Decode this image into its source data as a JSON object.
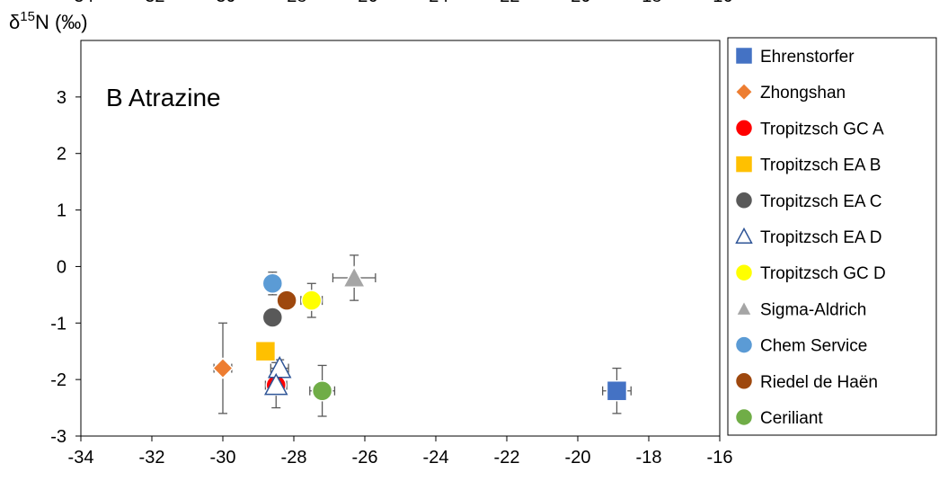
{
  "chart_data": {
    "type": "scatter",
    "title": "",
    "ylabel": "δ¹⁵N (‰)",
    "xlabel": "",
    "panel_label": "B Atrazine",
    "xlim": [
      -34,
      -16
    ],
    "ylim": [
      -3,
      4
    ],
    "x_ticks": [
      "-34",
      "-32",
      "-30",
      "-28",
      "-26",
      "-24",
      "-22",
      "-20",
      "-18",
      "-16"
    ],
    "y_ticks": [
      "3",
      "2",
      "1",
      "0",
      "-1",
      "-2",
      "-3"
    ],
    "top_partial_ticks": [
      "-34",
      "-32",
      "-30",
      "-28",
      "-26",
      "-24",
      "-22",
      "-20",
      "-18",
      "-16"
    ],
    "grid": false,
    "legend_position": "right",
    "series": [
      {
        "name": "Ehrenstorfer",
        "marker": "square",
        "color": "#4472C4",
        "filled": true,
        "points": [
          {
            "x": -18.9,
            "y": -2.2,
            "xerr": 0.4,
            "yerr": 0.4
          }
        ]
      },
      {
        "name": "Zhongshan",
        "marker": "diamond",
        "color": "#ED7D31",
        "filled": true,
        "points": [
          {
            "x": -30.0,
            "y": -1.8,
            "xerr": 0.25,
            "yerr": 0.8
          }
        ]
      },
      {
        "name": "Tropitzsch GC A",
        "marker": "circle",
        "color": "#FF0000",
        "filled": true,
        "points": [
          {
            "x": -28.5,
            "y": -2.1,
            "xerr": 0.3,
            "yerr": 0.4
          }
        ]
      },
      {
        "name": "Tropitzsch EA B",
        "marker": "square",
        "color": "#FFC000",
        "filled": true,
        "points": [
          {
            "x": -28.8,
            "y": -1.5,
            "xerr": 0,
            "yerr": 0
          }
        ]
      },
      {
        "name": "Tropitzsch EA C",
        "marker": "circle",
        "color": "#595959",
        "filled": true,
        "points": [
          {
            "x": -28.6,
            "y": -0.9,
            "xerr": 0,
            "yerr": 0
          }
        ]
      },
      {
        "name": "Tropitzsch EA D",
        "marker": "triangle",
        "color": "#2F5597",
        "filled": false,
        "points": [
          {
            "x": -28.4,
            "y": -1.8,
            "xerr": 0.25,
            "yerr": 0.15
          },
          {
            "x": -28.5,
            "y": -2.1,
            "xerr": 0.25,
            "yerr": 0.1
          }
        ]
      },
      {
        "name": "Tropitzsch GC D",
        "marker": "circle",
        "color": "#FFFF00",
        "filled": true,
        "points": [
          {
            "x": -27.5,
            "y": -0.6,
            "xerr": 0.3,
            "yerr": 0.3
          }
        ]
      },
      {
        "name": "Sigma-Aldrich",
        "marker": "triangle",
        "color": "#A5A5A5",
        "filled": true,
        "points": [
          {
            "x": -26.3,
            "y": -0.2,
            "xerr": 0.6,
            "yerr": 0.4
          }
        ]
      },
      {
        "name": "Chem Service",
        "marker": "circle",
        "color": "#5B9BD5",
        "filled": true,
        "points": [
          {
            "x": -28.6,
            "y": -0.3,
            "xerr": 0,
            "yerr": 0.2
          }
        ]
      },
      {
        "name": "Riedel de Haën",
        "marker": "circle",
        "color": "#9E480E",
        "filled": true,
        "points": [
          {
            "x": -28.2,
            "y": -0.6,
            "xerr": 0,
            "yerr": 0
          }
        ]
      },
      {
        "name": "Ceriliant",
        "marker": "circle",
        "color": "#70AD47",
        "filled": true,
        "points": [
          {
            "x": -27.2,
            "y": -2.2,
            "xerr": 0.35,
            "yerr": 0.45
          }
        ]
      }
    ]
  }
}
